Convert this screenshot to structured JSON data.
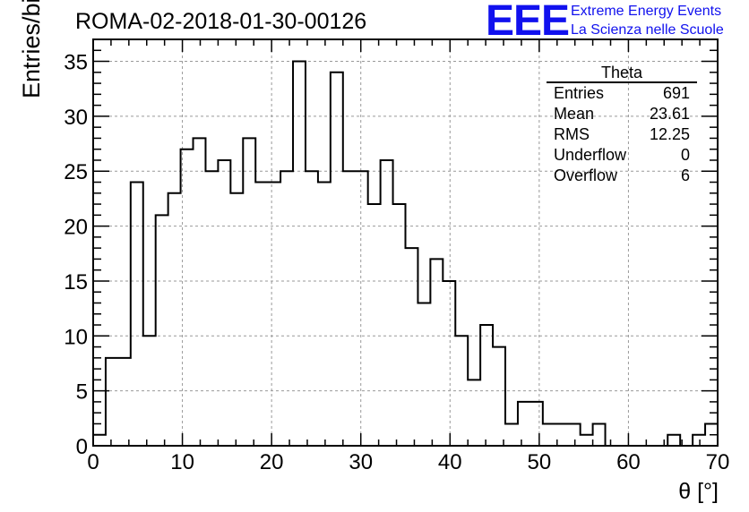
{
  "header": {
    "run_title": "ROMA-02-2018-01-30-00126",
    "logo_mark": "EEE",
    "logo_line1": "Extreme Energy Events",
    "logo_line2": "La Scienza nelle Scuole"
  },
  "stats_box": {
    "title": "Theta",
    "rows": [
      {
        "label": "Entries",
        "value": "691"
      },
      {
        "label": "Mean",
        "value": "23.61"
      },
      {
        "label": "RMS",
        "value": "12.25"
      },
      {
        "label": "Underflow",
        "value": "0"
      },
      {
        "label": "Overflow",
        "value": "6"
      }
    ]
  },
  "colors": {
    "line": "#000000",
    "grid": "#999999",
    "logo": "#1111ee"
  },
  "chart_data": {
    "type": "bar",
    "style": "step-histogram",
    "xlabel": "θ [°]",
    "ylabel": "Entries/bin",
    "xlim": [
      0,
      70
    ],
    "ylim": [
      0,
      37
    ],
    "xticks": [
      0,
      10,
      20,
      30,
      40,
      50,
      60,
      70
    ],
    "yticks": [
      0,
      5,
      10,
      15,
      20,
      25,
      30,
      35
    ],
    "grid": true,
    "bin_width": 1.4,
    "bin_edges_start": 0,
    "values": [
      1,
      8,
      8,
      24,
      10,
      21,
      23,
      27,
      28,
      25,
      26,
      23,
      28,
      24,
      24,
      25,
      35,
      25,
      24,
      34,
      25,
      25,
      22,
      26,
      22,
      18,
      13,
      17,
      15,
      10,
      6,
      11,
      9,
      2,
      4,
      4,
      2,
      2,
      2,
      1,
      2,
      0,
      0,
      0,
      0,
      0,
      1,
      0,
      1,
      2
    ]
  }
}
